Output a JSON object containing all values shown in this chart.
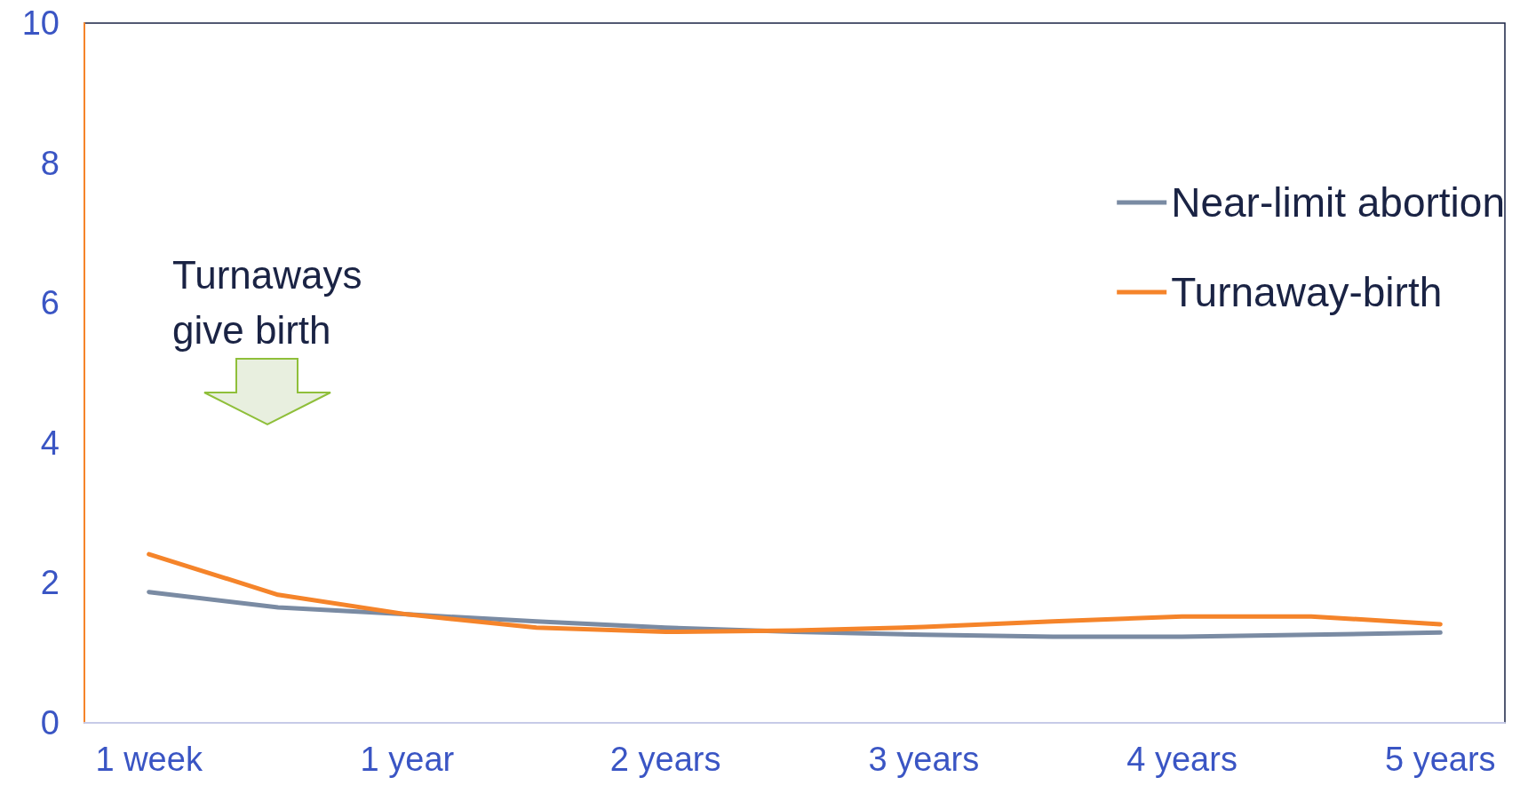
{
  "chart_data": {
    "type": "line",
    "categories": [
      "1 week",
      null,
      "1 year",
      null,
      "2 years",
      null,
      "3 years",
      null,
      "4 years",
      null,
      "5 years"
    ],
    "series": [
      {
        "name": "Near-limit abortion",
        "color": "#7a8ba3",
        "values": [
          1.87,
          1.65,
          1.55,
          1.45,
          1.36,
          1.3,
          1.26,
          1.23,
          1.23,
          1.26,
          1.29
        ]
      },
      {
        "name": "Turnaway-birth",
        "color": "#f5842a",
        "values": [
          2.41,
          1.83,
          1.55,
          1.36,
          1.3,
          1.32,
          1.37,
          1.45,
          1.52,
          1.52,
          1.41
        ]
      }
    ],
    "ylim": [
      0,
      10
    ],
    "yticks": [
      0,
      2,
      4,
      6,
      8,
      10
    ],
    "annotations": [
      "Turnaways give birth"
    ],
    "legend": "top right",
    "grid": false,
    "marker": "none",
    "line_style": "solid"
  }
}
